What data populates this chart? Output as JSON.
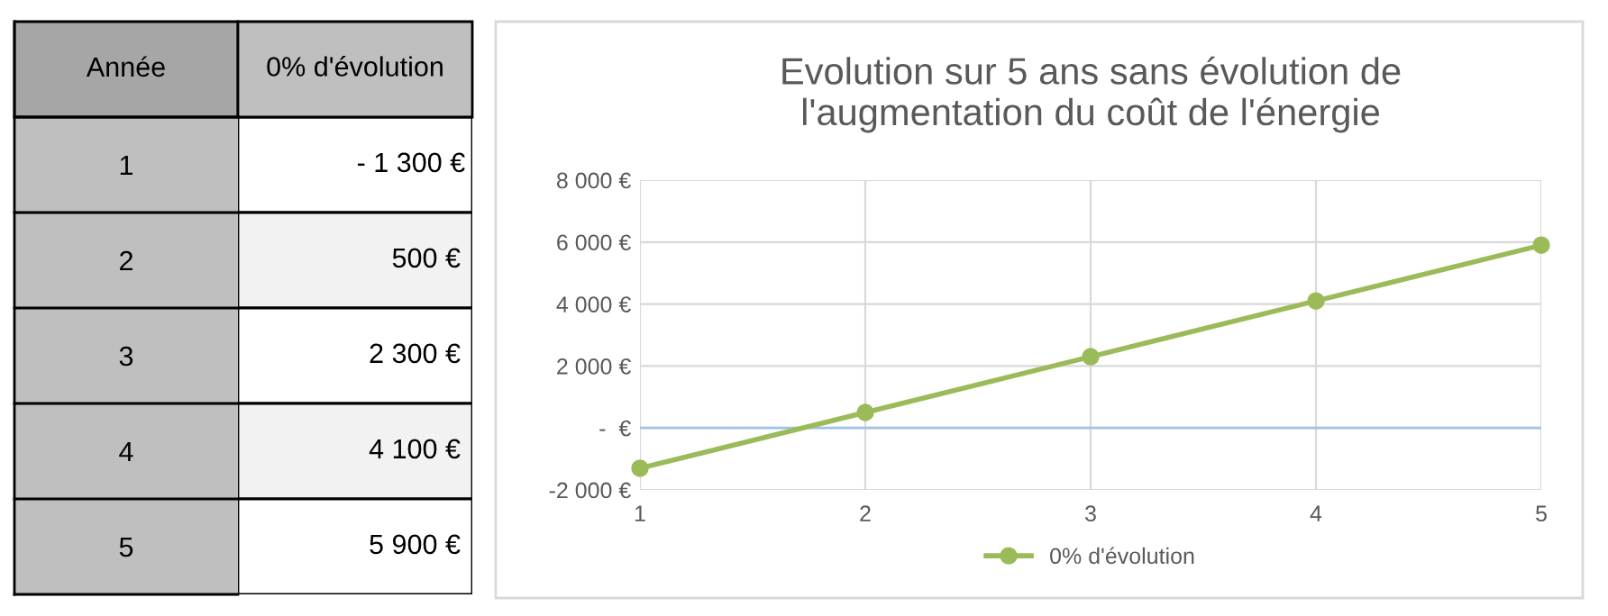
{
  "chart_data": [
    {
      "type": "heatmap",
      "ylabel": "Année",
      "categories": [
        "0% d'évolution"
      ],
      "y_categories": [
        "1",
        "2",
        "3",
        "4",
        "5"
      ],
      "cells": [
        [
          -1300
        ],
        [
          500
        ],
        [
          2300
        ],
        [
          4100
        ],
        [
          5900
        ]
      ],
      "cell_labels": [
        [
          "- 1 300 €"
        ],
        [
          "500 €"
        ],
        [
          "2 300 €"
        ],
        [
          "4 100 €"
        ],
        [
          "5 900 €"
        ]
      ]
    },
    {
      "type": "line",
      "title": "Evolution sur 5 ans sans évolution de\nl'augmentation du coût de l'énergie",
      "x": [
        1,
        2,
        3,
        4,
        5
      ],
      "series": [
        {
          "name": "0% d'évolution",
          "color": "#9bbb59",
          "values": [
            -1300,
            500,
            2300,
            4100,
            5900
          ]
        }
      ],
      "xlim": [
        1,
        5
      ],
      "xticks": [
        1,
        2,
        3,
        4,
        5
      ],
      "ylim": [
        -2000,
        8000
      ],
      "yticks": [
        {
          "value": -2000,
          "label": "-2 000 €"
        },
        {
          "value": 0,
          "label": "-  €"
        },
        {
          "value": 2000,
          "label": "2 000 €"
        },
        {
          "value": 4000,
          "label": "4 000 €"
        },
        {
          "value": 6000,
          "label": "6 000 €"
        },
        {
          "value": 8000,
          "label": "8 000 €"
        }
      ],
      "ref_lines": [
        {
          "axis": "y",
          "value": 0,
          "label": null,
          "color": "#9dc3e6"
        }
      ],
      "grid": true,
      "legend": "bottom",
      "marker": "circle",
      "line_style": "solid"
    }
  ]
}
